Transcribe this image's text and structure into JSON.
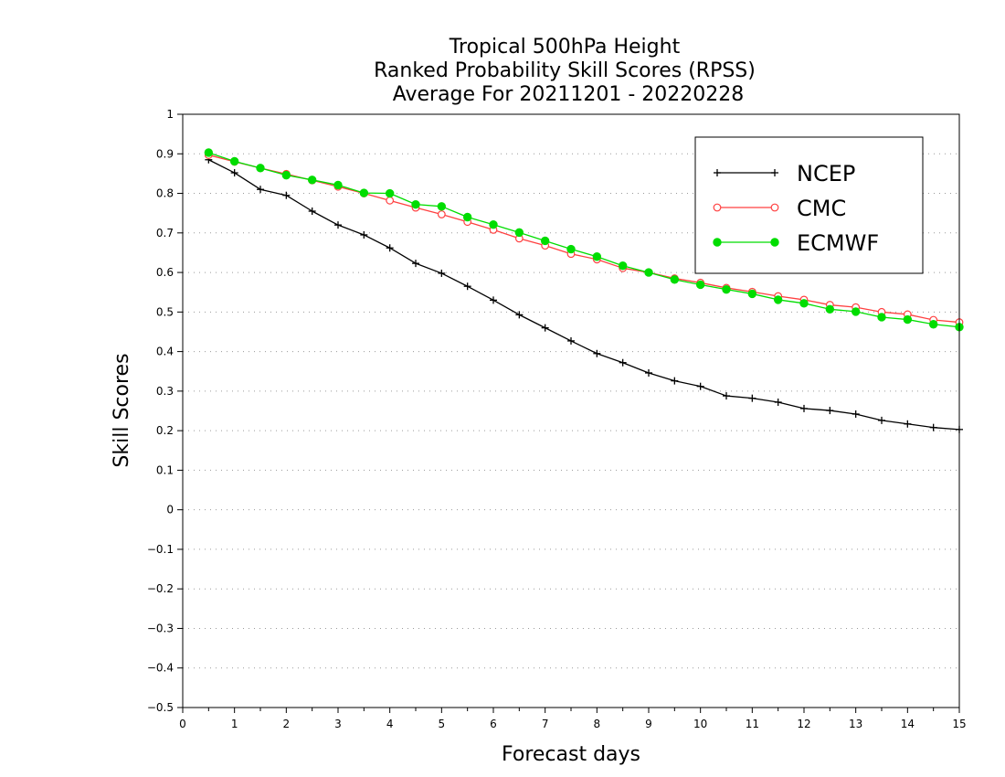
{
  "chart_data": {
    "type": "line",
    "title": [
      "Tropical 500hPa Height",
      "Ranked Probability Skill Scores (RPSS)",
      "Average For 20211201 - 20220228"
    ],
    "xlabel": "Forecast days",
    "ylabel": "Skill Scores",
    "xlim": [
      0,
      15
    ],
    "ylim": [
      -0.5,
      1
    ],
    "x_ticks": [
      0,
      1,
      2,
      3,
      4,
      5,
      6,
      7,
      8,
      9,
      10,
      11,
      12,
      13,
      14,
      15
    ],
    "y_ticks": [
      -0.5,
      -0.4,
      -0.3,
      -0.2,
      -0.1,
      0,
      0.1,
      0.2,
      0.3,
      0.4,
      0.5,
      0.6,
      0.7,
      0.8,
      0.9,
      1
    ],
    "y_tick_labels": [
      "−0.5",
      "−0.4",
      "−0.3",
      "−0.2",
      "−0.1",
      "0",
      "0.1",
      "0.2",
      "0.3",
      "0.4",
      "0.5",
      "0.6",
      "0.7",
      "0.8",
      "0.9",
      "1"
    ],
    "grid": "horizontal dotted",
    "legend_position": "top-right",
    "x": [
      0.5,
      1,
      1.5,
      2,
      2.5,
      3,
      3.5,
      4,
      4.5,
      5,
      5.5,
      6,
      6.5,
      7,
      7.5,
      8,
      8.5,
      9,
      9.5,
      10,
      10.5,
      11,
      11.5,
      12,
      12.5,
      13,
      13.5,
      14,
      14.5,
      15
    ],
    "series": [
      {
        "name": "NCEP",
        "color": "#000000",
        "marker": "plus",
        "values": [
          0.885,
          0.852,
          0.81,
          0.795,
          0.755,
          0.72,
          0.695,
          0.662,
          0.623,
          0.598,
          0.565,
          0.53,
          0.493,
          0.46,
          0.427,
          0.395,
          0.372,
          0.346,
          0.326,
          0.312,
          0.288,
          0.282,
          0.272,
          0.256,
          0.251,
          0.242,
          0.226,
          0.217,
          0.208,
          0.203
        ]
      },
      {
        "name": "CMC",
        "color": "#ff4040",
        "marker": "open-circle",
        "values": [
          0.897,
          0.88,
          0.864,
          0.849,
          0.833,
          0.817,
          0.8,
          0.782,
          0.764,
          0.747,
          0.728,
          0.708,
          0.686,
          0.668,
          0.647,
          0.633,
          0.611,
          0.6,
          0.585,
          0.574,
          0.561,
          0.551,
          0.54,
          0.531,
          0.518,
          0.512,
          0.5,
          0.494,
          0.48,
          0.474
        ]
      },
      {
        "name": "ECMWF",
        "color": "#00dd00",
        "marker": "filled-circle",
        "values": [
          0.903,
          0.881,
          0.864,
          0.846,
          0.834,
          0.821,
          0.801,
          0.8,
          0.772,
          0.767,
          0.74,
          0.721,
          0.701,
          0.68,
          0.659,
          0.64,
          0.617,
          0.6,
          0.582,
          0.569,
          0.557,
          0.546,
          0.531,
          0.522,
          0.507,
          0.501,
          0.487,
          0.481,
          0.469,
          0.462
        ]
      }
    ]
  }
}
